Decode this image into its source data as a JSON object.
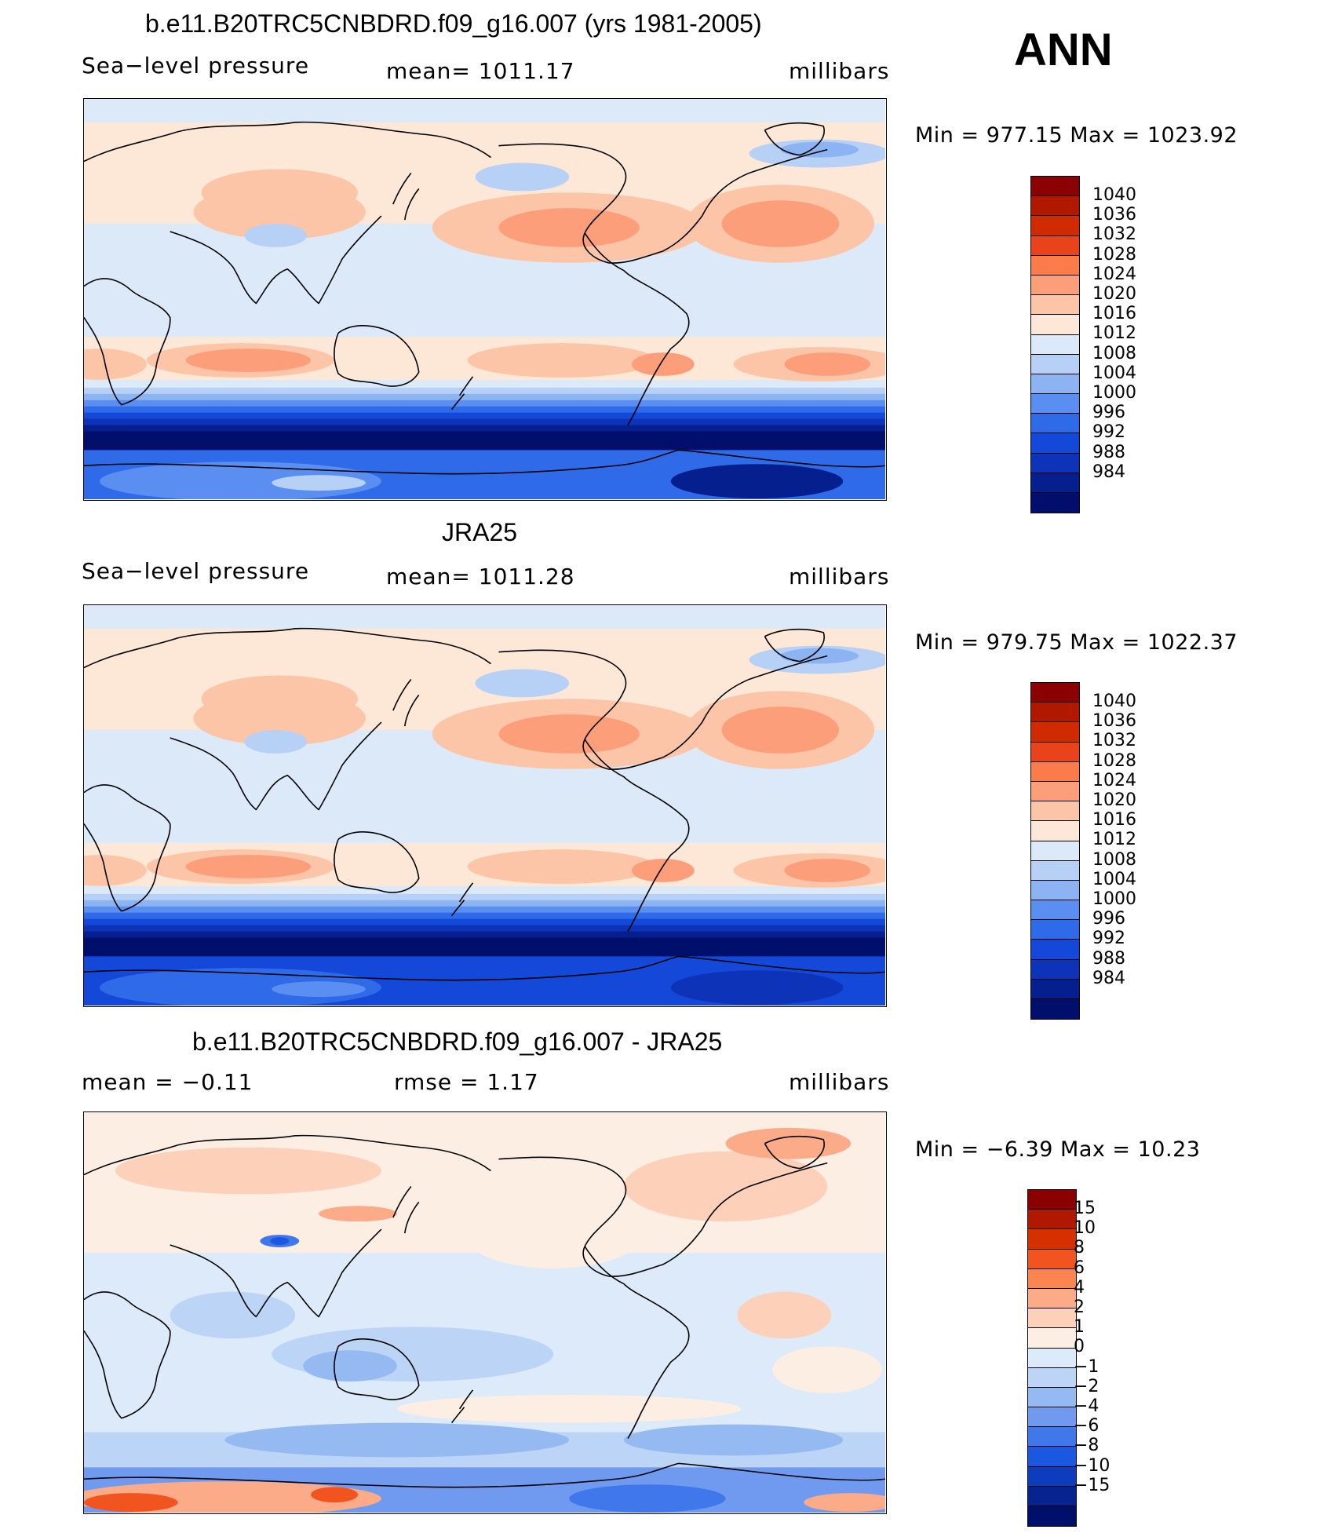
{
  "season": "ANN",
  "palettes": {
    "abs": [
      "#8b0000",
      "#b01800",
      "#d02a00",
      "#e8431a",
      "#fb7b4a",
      "#fc9e7a",
      "#fdc5a8",
      "#fde7d7",
      "#dce9f9",
      "#b7d0f6",
      "#8db4f2",
      "#5a8ef0",
      "#2f6be8",
      "#1448d8",
      "#0d33b8",
      "#061f8e",
      "#000f6b"
    ],
    "diff": [
      "#8b0000",
      "#b01800",
      "#d73000",
      "#f2541f",
      "#fb8551",
      "#fcab88",
      "#fdd1b9",
      "#fdeee3",
      "#dceaf9",
      "#bcd4f6",
      "#95baf2",
      "#6f9af0",
      "#4078ec",
      "#1b57e0",
      "#0d3cbf",
      "#05248f",
      "#000f6b"
    ]
  },
  "panels": [
    {
      "title": "b.e11.B20TRC5CNBDRD.f09_g16.007 (yrs 1981-2005)",
      "left_label": "Sea−level pressure",
      "center_label": "mean=  1011.17",
      "units": "millibars",
      "minmax": "Min  =  977.15  Max  =  1023.92",
      "palette": "abs",
      "ticks": [
        "1040",
        "1036",
        "1032",
        "1028",
        "1024",
        "1020",
        "1016",
        "1012",
        "1008",
        "1004",
        "1000",
        "996",
        "992",
        "988",
        "984"
      ]
    },
    {
      "title": "JRA25",
      "left_label": "Sea−level pressure",
      "center_label": "mean=  1011.28",
      "units": "millibars",
      "minmax": "Min  =  979.75  Max  =  1022.37",
      "palette": "abs",
      "ticks": [
        "1040",
        "1036",
        "1032",
        "1028",
        "1024",
        "1020",
        "1016",
        "1012",
        "1008",
        "1004",
        "1000",
        "996",
        "992",
        "988",
        "984"
      ]
    },
    {
      "title": "b.e11.B20TRC5CNBDRD.f09_g16.007 - JRA25",
      "left_label": "mean  =     −0.11",
      "center_label": "rmse  =      1.17",
      "units": "millibars",
      "minmax": "Min  =    −6.39  Max  =    10.23",
      "palette": "diff",
      "ticks": [
        "15",
        "10",
        "8",
        "6",
        "4",
        "2",
        "1",
        "0",
        "−1",
        "−2",
        "−4",
        "−6",
        "−8",
        "−10",
        "−15"
      ]
    }
  ]
}
